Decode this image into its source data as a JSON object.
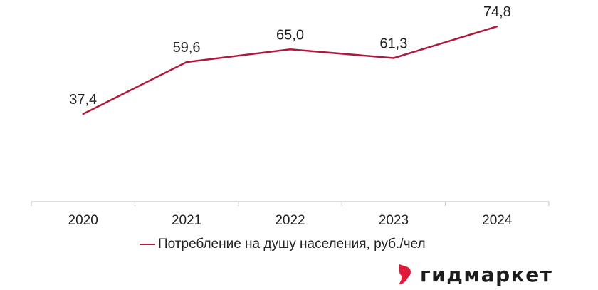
{
  "chart_data": {
    "type": "line",
    "categories": [
      "2020",
      "2021",
      "2022",
      "2023",
      "2024"
    ],
    "series": [
      {
        "name": "Потребление на душу населения, руб./чел",
        "values": [
          37.4,
          59.6,
          65.0,
          61.3,
          74.8
        ]
      }
    ],
    "data_labels": [
      "37,4",
      "59,6",
      "65,0",
      "61,3",
      "74,8"
    ],
    "ylim": [
      0,
      80
    ],
    "grid": false,
    "legend_position": "bottom",
    "colors": {
      "line": "#b0193c",
      "axis": "#bfbfbf",
      "text": "#222222"
    }
  },
  "legend": {
    "label": "Потребление на душу населения, руб./чел"
  },
  "logo": {
    "text": "гидмаркет",
    "icon": "gidmarket-logo-icon",
    "color": "#e2183b"
  }
}
